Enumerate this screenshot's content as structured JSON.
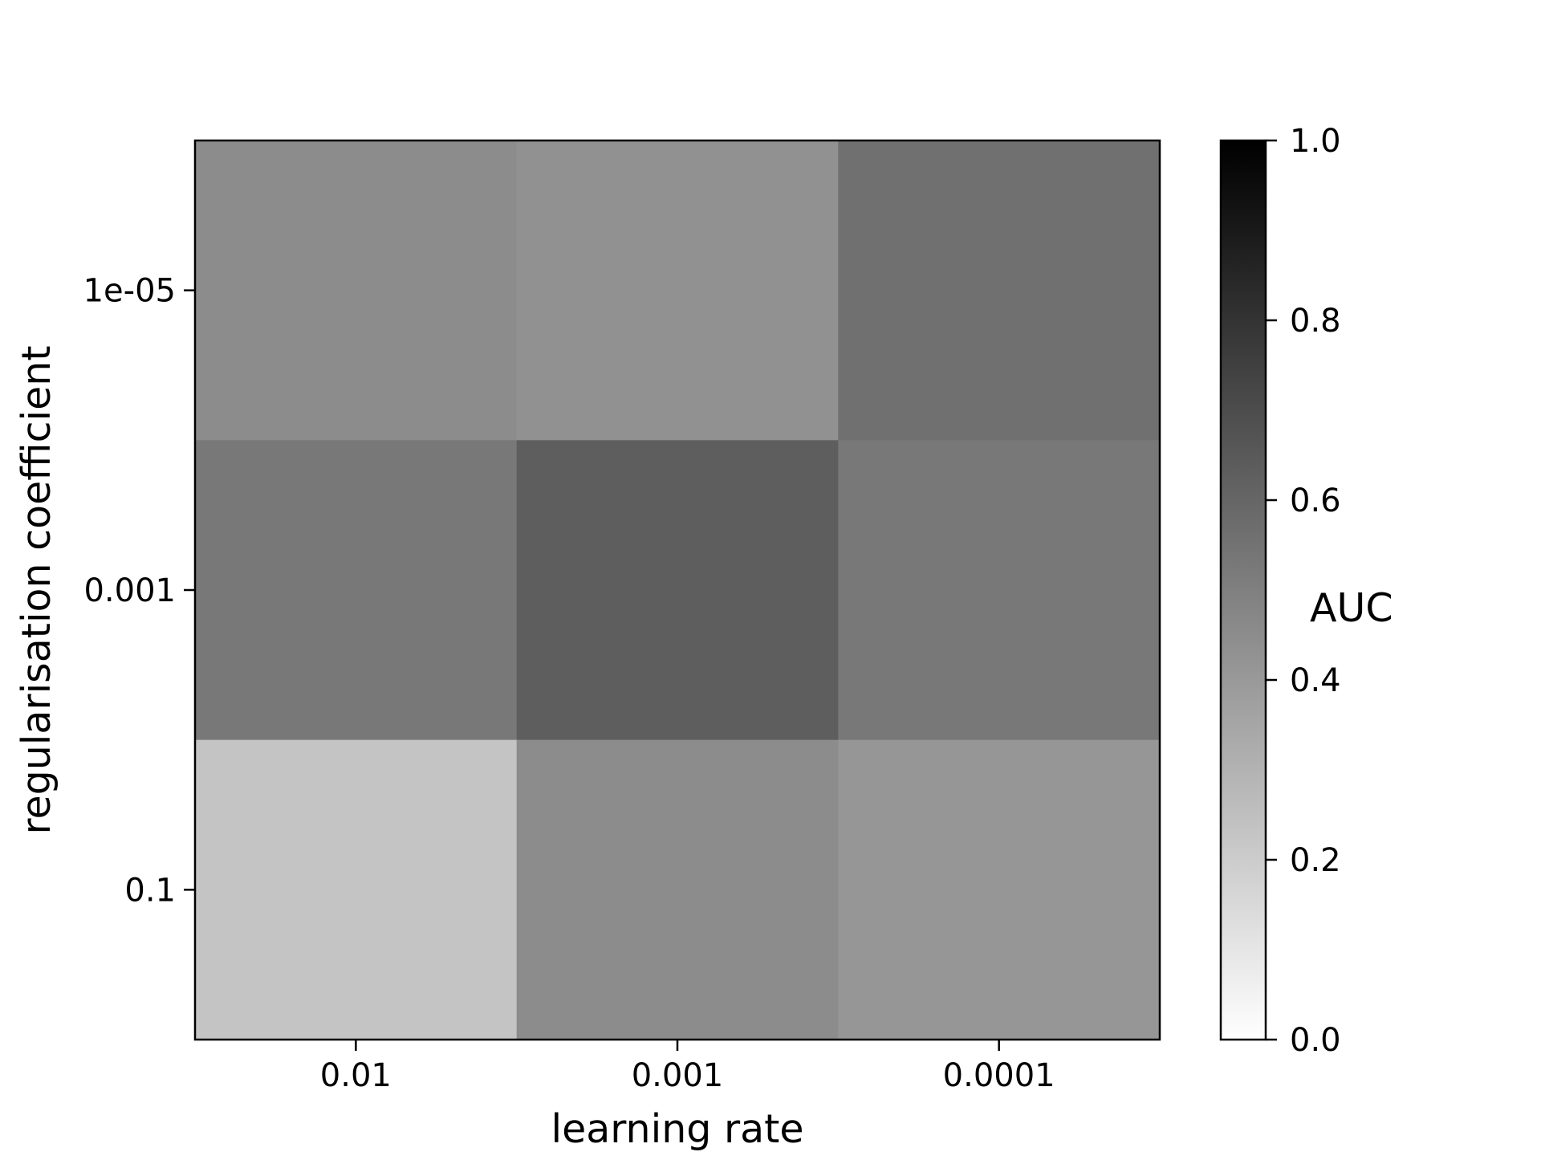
{
  "chart_data": {
    "type": "heatmap",
    "title": "",
    "xlabel": "learning rate",
    "ylabel": "regularisation coefficient",
    "x_categories": [
      "0.01",
      "0.001",
      "0.0001"
    ],
    "y_categories": [
      "1e-05",
      "0.001",
      "0.1"
    ],
    "values": [
      [
        0.45,
        0.43,
        0.56
      ],
      [
        0.53,
        0.63,
        0.53
      ],
      [
        0.23,
        0.45,
        0.41
      ]
    ],
    "colormap": "Greys",
    "vmin": 0.0,
    "vmax": 1.0,
    "colorbar": {
      "label": "AUC",
      "ticks": [
        "0.0",
        "0.2",
        "0.4",
        "0.6",
        "0.8",
        "1.0"
      ],
      "tick_values": [
        0.0,
        0.2,
        0.4,
        0.6,
        0.8,
        1.0
      ]
    }
  }
}
